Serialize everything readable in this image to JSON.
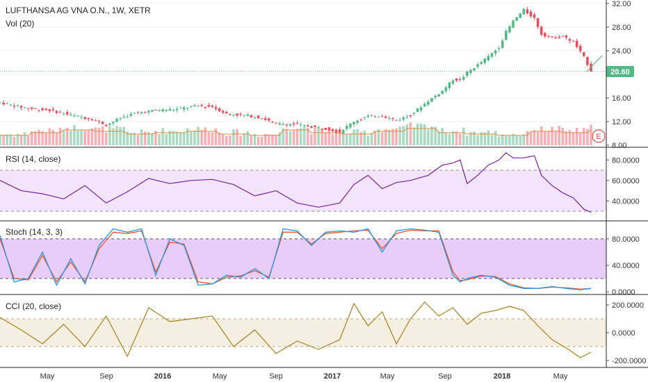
{
  "colors": {
    "up": "#53b987",
    "down": "#eb4d5c",
    "vol_up": "#9fd6bb",
    "vol_down": "#f5a6ae",
    "vol_ma": "#e08a3a",
    "rsi": "#7b1fa2",
    "rsi_band": "#f1e4fb",
    "stoch_k": "#2196f3",
    "stoch_d": "#f4511e",
    "stoch_band": "#e8cdfa",
    "cci": "#a7801d",
    "cci_band": "#f5efe2",
    "price_line": "#53b987",
    "last_badge": "#53b987",
    "earnings": "#e74c3c"
  },
  "x_axis": {
    "labels": [
      "May",
      "Sep",
      "2016",
      "May",
      "Sep",
      "2017",
      "May",
      "Sep",
      "2018",
      "May"
    ],
    "bold": [
      false,
      false,
      true,
      false,
      false,
      true,
      false,
      false,
      true,
      false
    ]
  },
  "chart_data": [
    {
      "type": "candlestick",
      "title": "LUFTHANSA AG VNA O.N., 1W, XETR",
      "subtitle": "Vol (20)",
      "price_axis_ticks": [
        "32.00",
        "28.00",
        "24.00",
        "20.00",
        "16.00",
        "12.00",
        "8.00"
      ],
      "y_range": [
        8,
        32
      ],
      "last_price": "20.60",
      "earnings_marker": "E",
      "x_start": "2015-03",
      "x_end": "2018-06",
      "path": [
        [
          0,
          15.2
        ],
        [
          8,
          14.2
        ],
        [
          14,
          13.9
        ],
        [
          20,
          13.1
        ],
        [
          26,
          12.4
        ],
        [
          30,
          11.4
        ],
        [
          34,
          12.6
        ],
        [
          38,
          13.4
        ],
        [
          44,
          13.9
        ],
        [
          50,
          14.1
        ],
        [
          56,
          14.7
        ],
        [
          60,
          14.5
        ],
        [
          64,
          13.3
        ],
        [
          70,
          13.0
        ],
        [
          74,
          12.6
        ],
        [
          78,
          11.6
        ],
        [
          84,
          11.5
        ],
        [
          88,
          11.1
        ],
        [
          92,
          10.8
        ],
        [
          96,
          10.3
        ],
        [
          100,
          12.0
        ],
        [
          104,
          12.9
        ],
        [
          108,
          13.0
        ],
        [
          112,
          12.2
        ],
        [
          116,
          13.1
        ],
        [
          121,
          15.5
        ],
        [
          125,
          17.2
        ],
        [
          128,
          19.1
        ],
        [
          130,
          19.0
        ],
        [
          132,
          20.3
        ],
        [
          135,
          21.6
        ],
        [
          138,
          23.0
        ],
        [
          141,
          24.6
        ],
        [
          143,
          27.2
        ],
        [
          145,
          29.0
        ],
        [
          148,
          30.9
        ],
        [
          151,
          29.5
        ],
        [
          153,
          26.8
        ],
        [
          156,
          26.2
        ],
        [
          159,
          26.4
        ],
        [
          162,
          25.5
        ],
        [
          165,
          22.9
        ],
        [
          167,
          20.6
        ]
      ],
      "volume_bands": [
        2,
        4,
        6,
        5,
        3,
        4,
        5,
        3,
        2,
        6,
        4,
        3,
        5,
        7,
        4,
        3,
        2,
        5,
        4,
        6
      ]
    },
    {
      "type": "line",
      "title": "RSI (14, close)",
      "y_axis_ticks": [
        "80.0000",
        "60.0000",
        "40.0000"
      ],
      "y_range": [
        22,
        91
      ],
      "bands": [
        30,
        70
      ],
      "x": [
        0,
        6,
        12,
        18,
        24,
        30,
        36,
        42,
        48,
        54,
        60,
        66,
        72,
        78,
        84,
        90,
        96,
        100,
        104,
        108,
        112,
        116,
        121,
        125,
        128,
        130,
        132,
        135,
        138,
        141,
        143,
        145,
        148,
        151,
        153,
        156,
        159,
        162,
        165,
        167
      ],
      "values": [
        60,
        50,
        47,
        42,
        55,
        38,
        49,
        62,
        57,
        60,
        61,
        56,
        45,
        50,
        38,
        34,
        38,
        56,
        65,
        52,
        58,
        60,
        65,
        75,
        77,
        80,
        57,
        65,
        75,
        80,
        87,
        82,
        82,
        84,
        65,
        55,
        48,
        43,
        32,
        29
      ]
    },
    {
      "type": "line",
      "title": "Stoch (14, 3, 3)",
      "y_axis_ticks": [
        "80.0000",
        "40.0000",
        "0.0000"
      ],
      "y_range": [
        -2,
        105
      ],
      "bands": [
        20,
        80
      ],
      "series": [
        {
          "x": [
            0,
            4,
            8,
            12,
            16,
            20,
            24,
            28,
            32,
            36,
            40,
            44,
            48,
            52,
            56,
            60,
            64,
            68,
            72,
            76,
            80,
            84,
            88,
            92,
            96,
            100,
            104,
            108,
            112,
            116,
            120,
            124,
            128,
            130,
            132,
            136,
            140,
            144,
            148,
            152,
            156,
            160,
            164,
            167
          ],
          "values": [
            85,
            15,
            20,
            60,
            10,
            50,
            12,
            70,
            95,
            90,
            95,
            25,
            80,
            70,
            10,
            12,
            25,
            22,
            35,
            20,
            95,
            92,
            70,
            90,
            92,
            90,
            95,
            60,
            92,
            95,
            93,
            90,
            25,
            15,
            20,
            25,
            22,
            10,
            5,
            5,
            8,
            5,
            3,
            5
          ]
        },
        {
          "x": [
            0,
            4,
            8,
            12,
            16,
            20,
            24,
            28,
            32,
            36,
            40,
            44,
            48,
            52,
            56,
            60,
            64,
            68,
            72,
            76,
            80,
            84,
            88,
            92,
            96,
            100,
            104,
            108,
            112,
            116,
            120,
            124,
            128,
            130,
            132,
            136,
            140,
            144,
            148,
            152,
            156,
            160,
            164,
            167
          ],
          "values": [
            80,
            20,
            18,
            55,
            15,
            45,
            15,
            65,
            90,
            88,
            92,
            30,
            75,
            72,
            15,
            12,
            22,
            24,
            32,
            22,
            90,
            90,
            72,
            88,
            90,
            92,
            93,
            65,
            88,
            93,
            92,
            92,
            30,
            17,
            18,
            24,
            23,
            12,
            6,
            5,
            7,
            6,
            4,
            5
          ]
        }
      ]
    },
    {
      "type": "line",
      "title": "CCI (20, close)",
      "y_axis_ticks": [
        "200.0000",
        "0.0000",
        "-200.0000"
      ],
      "y_range": [
        -240,
        265
      ],
      "bands": [
        -100,
        100
      ],
      "x": [
        0,
        6,
        12,
        18,
        24,
        30,
        36,
        42,
        48,
        54,
        60,
        66,
        72,
        78,
        84,
        90,
        96,
        100,
        104,
        108,
        112,
        116,
        120,
        124,
        128,
        132,
        136,
        140,
        144,
        148,
        152,
        156,
        160,
        164,
        167
      ],
      "values": [
        110,
        20,
        -80,
        60,
        -100,
        120,
        -170,
        180,
        80,
        100,
        120,
        -100,
        20,
        -150,
        -60,
        -120,
        -50,
        210,
        50,
        150,
        -80,
        100,
        220,
        120,
        180,
        60,
        140,
        160,
        190,
        160,
        50,
        -50,
        -110,
        -180,
        -140
      ]
    }
  ]
}
